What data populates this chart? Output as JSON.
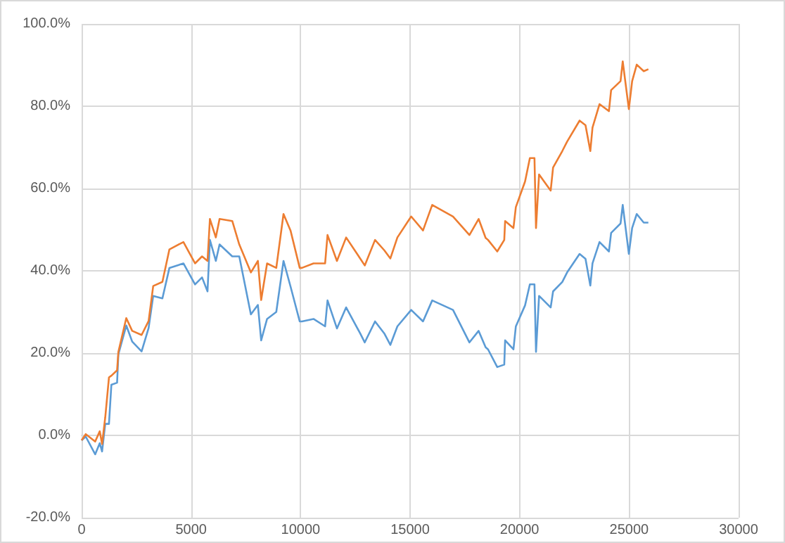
{
  "chart_data": {
    "type": "line",
    "x": [
      0,
      190,
      620,
      830,
      935,
      1080,
      1250,
      1360,
      1620,
      1680,
      2040,
      2310,
      2740,
      3060,
      3270,
      3690,
      4010,
      4650,
      5180,
      5500,
      5750,
      5860,
      6130,
      6300,
      6880,
      7200,
      7730,
      8050,
      8200,
      8470,
      8890,
      9220,
      9540,
      9960,
      10060,
      10590,
      11120,
      11230,
      11660,
      12080,
      12720,
      12930,
      13400,
      13820,
      14100,
      14420,
      15050,
      15590,
      16010,
      16960,
      17710,
      18130,
      18450,
      18560,
      18980,
      19300,
      19340,
      19720,
      19830,
      20250,
      20470,
      20680,
      20750,
      20890,
      21420,
      21530,
      21950,
      22170,
      22740,
      23010,
      23230,
      23330,
      23650,
      24080,
      24180,
      24610,
      24710,
      24990,
      25140,
      25350,
      25670,
      25880
    ],
    "series": [
      {
        "color": "#5b9bd5",
        "values": [
          -1.2,
          -0.3,
          -4.6,
          -1.9,
          -3.9,
          2.8,
          2.8,
          12.3,
          12.8,
          19.7,
          26.7,
          22.8,
          20.4,
          26.1,
          33.9,
          33.3,
          40.7,
          41.8,
          36.7,
          38.4,
          35,
          47.5,
          42.4,
          46.4,
          43.5,
          43.5,
          29.4,
          31.7,
          23.1,
          28.3,
          30,
          42.4,
          36.2,
          27.7,
          27.7,
          28.3,
          26.5,
          32.8,
          26,
          31.1,
          24.8,
          22.6,
          27.7,
          24.8,
          22,
          26.5,
          30.5,
          27.7,
          32.8,
          30.5,
          22.6,
          25.4,
          21.4,
          20.9,
          16.6,
          17.2,
          23.1,
          20.9,
          26.5,
          31.6,
          36.7,
          36.7,
          20.3,
          33.9,
          31.1,
          35,
          37.3,
          39.6,
          44.1,
          42.9,
          36.4,
          41.8,
          47,
          44.7,
          49.2,
          51.5,
          56,
          44.1,
          50.4,
          53.8,
          51.7,
          51.7
        ]
      },
      {
        "color": "#ed7d31",
        "values": [
          -1.2,
          0.3,
          -1.5,
          1,
          -2.1,
          4.4,
          14.1,
          14.5,
          15.8,
          20.3,
          28.5,
          25.4,
          24.4,
          27.8,
          36.3,
          37.3,
          45.2,
          47,
          41.8,
          43.5,
          42.4,
          52.6,
          48.1,
          52.6,
          52.1,
          46.4,
          39.6,
          42.4,
          32.9,
          41.8,
          40.7,
          53.8,
          49.8,
          40.7,
          40.7,
          41.8,
          41.8,
          48.7,
          42.4,
          48.1,
          43,
          41.3,
          47.5,
          45,
          43,
          48.1,
          53.2,
          49.8,
          56,
          53.2,
          48.7,
          52.6,
          48,
          47.5,
          44.7,
          47.5,
          52.1,
          50.4,
          55.5,
          61.7,
          67.4,
          67.4,
          50.4,
          63.4,
          59.5,
          65.1,
          69.1,
          71.4,
          76.5,
          75.4,
          69.1,
          74.8,
          80.5,
          78.8,
          83.9,
          86.1,
          90.9,
          79.3,
          86.1,
          90.1,
          88.5,
          89
        ]
      }
    ],
    "xlim": [
      0,
      30000
    ],
    "xticks": [
      0,
      5000,
      10000,
      15000,
      20000,
      25000,
      30000
    ],
    "ylim": [
      -20,
      100
    ],
    "yticks": [
      {
        "value": -20,
        "label": "-20.0%"
      },
      {
        "value": 0,
        "label": "0.0%"
      },
      {
        "value": 20,
        "label": "20.0%"
      },
      {
        "value": 40,
        "label": "40.0%"
      },
      {
        "value": 60,
        "label": "60.0%"
      },
      {
        "value": 80,
        "label": "80.0%"
      },
      {
        "value": 100,
        "label": "100.0%"
      }
    ],
    "grid": true,
    "marker": "none",
    "line_style": "solid"
  }
}
